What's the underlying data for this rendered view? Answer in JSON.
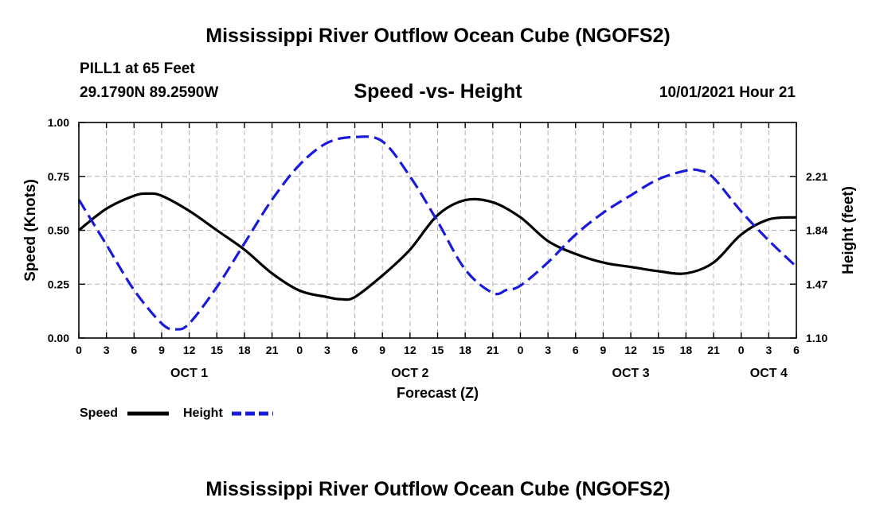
{
  "header": {
    "title": "Mississippi River Outflow Ocean Cube (NGOFS2)",
    "station": "PILL1 at 65 Feet",
    "coords": "29.1790N  89.2590W",
    "subtitle": "Speed -vs- Height",
    "datetime": "10/01/2021 Hour 21"
  },
  "footer": {
    "title": "Mississippi River Outflow Ocean Cube (NGOFS2)"
  },
  "legend": {
    "speed_label": "Speed",
    "height_label": "Height"
  },
  "colors": {
    "speed": "#000000",
    "height": "#1a1adb",
    "grid": "#b4b4b4"
  },
  "chart_data": {
    "type": "line",
    "title": "Speed -vs- Height",
    "xlabel": "Forecast (Z)",
    "ylabel": "Speed (Knots)",
    "y2label": "Height (feet)",
    "xlim": [
      0,
      78
    ],
    "ylim": [
      0,
      1.0
    ],
    "y2lim": [
      1.1,
      2.58
    ],
    "x_ticks": [
      0,
      3,
      6,
      9,
      12,
      15,
      18,
      21,
      24,
      27,
      30,
      33,
      36,
      39,
      42,
      45,
      48,
      51,
      54,
      57,
      60,
      63,
      66,
      69,
      72,
      75,
      78
    ],
    "x_tick_labels": [
      "0",
      "3",
      "6",
      "9",
      "12",
      "15",
      "18",
      "21",
      "0",
      "3",
      "6",
      "9",
      "12",
      "15",
      "18",
      "21",
      "0",
      "3",
      "6",
      "9",
      "12",
      "15",
      "18",
      "21",
      "0",
      "3",
      "6"
    ],
    "y_ticks": [
      0,
      0.25,
      0.5,
      0.75,
      1.0
    ],
    "y_tick_labels": [
      "0.00",
      "0.25",
      "0.50",
      "0.75",
      "1.00"
    ],
    "y2_ticks": [
      1.1,
      1.47,
      1.84,
      2.21
    ],
    "y2_tick_labels": [
      "1.10",
      "1.47",
      "1.84",
      "2.21"
    ],
    "day_labels": [
      {
        "x": 12,
        "label": "OCT 1"
      },
      {
        "x": 36,
        "label": "OCT 2"
      },
      {
        "x": 60,
        "label": "OCT 3"
      },
      {
        "x": 75,
        "label": "OCT 4"
      }
    ],
    "grid": true,
    "series": [
      {
        "name": "Speed",
        "axis": "left",
        "style": "solid",
        "x": [
          0,
          3,
          6,
          7.5,
          9,
          12,
          15,
          18,
          21,
          24,
          27,
          28.5,
          30,
          33,
          36,
          39,
          42,
          45,
          48,
          51,
          54,
          57,
          60,
          63,
          66,
          69,
          72,
          75,
          78
        ],
        "y": [
          0.5,
          0.6,
          0.66,
          0.67,
          0.66,
          0.59,
          0.5,
          0.41,
          0.3,
          0.22,
          0.19,
          0.18,
          0.19,
          0.29,
          0.41,
          0.57,
          0.64,
          0.63,
          0.56,
          0.45,
          0.39,
          0.35,
          0.33,
          0.31,
          0.3,
          0.35,
          0.48,
          0.55,
          0.56
        ]
      },
      {
        "name": "Height",
        "axis": "right",
        "style": "dashed",
        "x": [
          0,
          3,
          6,
          9,
          10.5,
          12,
          15,
          18,
          21,
          24,
          27,
          30,
          33,
          36,
          39,
          42,
          45,
          46.5,
          48,
          51,
          54,
          57,
          60,
          63,
          66,
          67.5,
          69,
          72,
          75,
          78
        ],
        "y": [
          2.05,
          1.74,
          1.43,
          1.2,
          1.16,
          1.2,
          1.45,
          1.75,
          2.05,
          2.29,
          2.44,
          2.48,
          2.45,
          2.21,
          1.9,
          1.57,
          1.41,
          1.43,
          1.46,
          1.62,
          1.81,
          1.96,
          2.08,
          2.19,
          2.25,
          2.25,
          2.2,
          1.97,
          1.77,
          1.59
        ]
      }
    ]
  }
}
